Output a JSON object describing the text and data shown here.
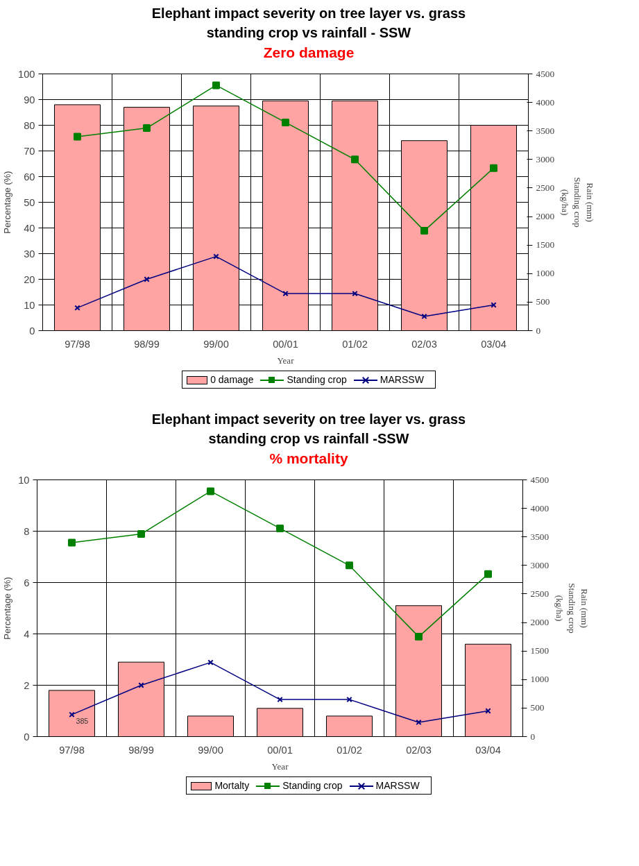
{
  "chart_data": [
    {
      "type": "bar",
      "title": "Elephant impact severity on tree layer vs. grass\nstanding crop vs rainfall - SSW",
      "subtitle": "Zero damage",
      "xlabel": "Year",
      "ylabel": "Percentage (%)",
      "y2label": "Rain (mm)\nStanding crop\n(kg/ha)",
      "categories": [
        "97/98",
        "98/99",
        "99/00",
        "00/01",
        "01/02",
        "02/03",
        "03/04"
      ],
      "series": [
        {
          "name": "0 damage",
          "color": "#ffa3a3",
          "values": [
            88,
            87,
            87.5,
            89.5,
            89.5,
            74,
            80
          ]
        },
        {
          "name": "Standing crop",
          "type": "line",
          "axis": "y2",
          "marker": "square",
          "color": "#008000",
          "values": [
            3400,
            3550,
            4300,
            3650,
            3000,
            1750,
            2850
          ]
        },
        {
          "name": "MARSSW",
          "type": "line",
          "axis": "y2",
          "marker": "cross",
          "color": "#000080",
          "values": [
            400,
            900,
            1300,
            650,
            650,
            250,
            450
          ]
        }
      ],
      "ylim": [
        0,
        100
      ],
      "yticks": [
        0,
        10,
        20,
        30,
        40,
        50,
        60,
        70,
        80,
        90,
        100
      ],
      "y2lim": [
        0,
        4500
      ],
      "y2ticks": [
        0,
        500,
        1000,
        1500,
        2000,
        2500,
        3000,
        3500,
        4000,
        4500
      ],
      "grid": true,
      "legend": "bottom"
    },
    {
      "type": "bar",
      "title": "Elephant impact severity on tree layer vs. grass\nstanding crop vs rainfall -SSW",
      "subtitle": "% mortality",
      "xlabel": "Year",
      "ylabel": "Percentage (%)",
      "y2label": "Rain (mm)\nStanding crop\n(kg/ha)",
      "categories": [
        "97/98",
        "98/99",
        "99/00",
        "00/01",
        "01/02",
        "02/03",
        "03/04"
      ],
      "series": [
        {
          "name": "Mortalty",
          "color": "#ffa3a3",
          "values": [
            1.8,
            2.9,
            0.8,
            1.1,
            0.8,
            5.1,
            3.6
          ]
        },
        {
          "name": "Standing crop",
          "type": "line",
          "axis": "y2",
          "marker": "square",
          "color": "#008000",
          "values": [
            3400,
            3550,
            4300,
            3650,
            3000,
            1750,
            2850
          ]
        },
        {
          "name": "MARSSW",
          "type": "line",
          "axis": "y2",
          "marker": "cross",
          "color": "#000080",
          "values": [
            385,
            900,
            1300,
            650,
            650,
            250,
            450
          ]
        }
      ],
      "ylim": [
        0,
        10
      ],
      "yticks": [
        0,
        2,
        4,
        6,
        8,
        10
      ],
      "y2lim": [
        0,
        4500
      ],
      "y2ticks": [
        0,
        500,
        1000,
        1500,
        2000,
        2500,
        3000,
        3500,
        4000,
        4500
      ],
      "annotations": [
        {
          "text": "385",
          "x": "97/98",
          "y": 0.86
        }
      ],
      "grid": true,
      "legend": "bottom"
    }
  ]
}
